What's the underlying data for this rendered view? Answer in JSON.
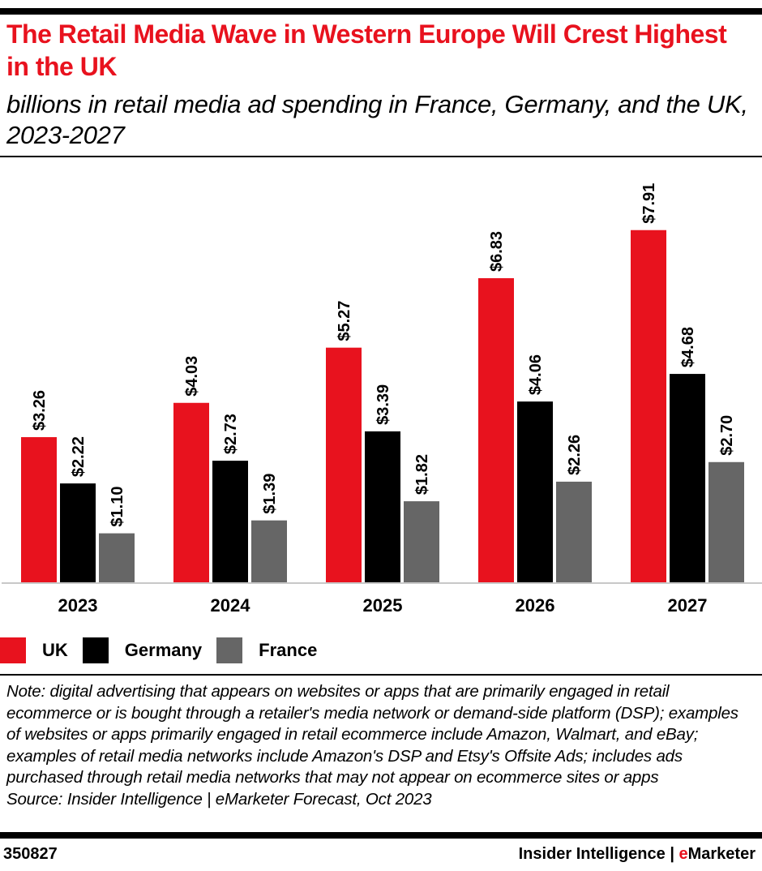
{
  "header": {
    "title": "The Retail Media Wave in Western Europe Will Crest Highest in the UK",
    "subtitle": "billions in retail media ad spending in France, Germany, and the UK, 2023-2027"
  },
  "chart_data": {
    "type": "bar",
    "title": "The Retail Media Wave in Western Europe Will Crest Highest in the UK",
    "subtitle": "billions in retail media ad spending in France, Germany, and the UK, 2023-2027",
    "xlabel": "",
    "ylabel": "",
    "categories": [
      "2023",
      "2024",
      "2025",
      "2026",
      "2027"
    ],
    "series": [
      {
        "name": "UK",
        "color": "#e8121e",
        "values": [
          3.26,
          4.03,
          5.27,
          6.83,
          7.91
        ],
        "labels": [
          "$3.26",
          "$4.03",
          "$5.27",
          "$6.83",
          "$7.91"
        ]
      },
      {
        "name": "Germany",
        "color": "#000000",
        "values": [
          2.22,
          2.73,
          3.39,
          4.06,
          4.68
        ],
        "labels": [
          "$2.22",
          "$2.73",
          "$3.39",
          "$4.06",
          "$4.68"
        ]
      },
      {
        "name": "France",
        "color": "#666666",
        "values": [
          1.1,
          1.39,
          1.82,
          2.26,
          2.7
        ],
        "labels": [
          "$1.10",
          "$1.39",
          "$1.82",
          "$2.26",
          "$2.70"
        ]
      }
    ],
    "ylim": [
      0,
      9.1
    ],
    "grid": false,
    "legend": "bottom-left",
    "data_labels": "rotated-vertical"
  },
  "legend": [
    {
      "label": "UK",
      "color": "#e8121e"
    },
    {
      "label": "Germany",
      "color": "#000000"
    },
    {
      "label": "France",
      "color": "#666666"
    }
  ],
  "note": "Note: digital advertising that appears on websites or apps that are primarily engaged in retail ecommerce or is bought through a retailer's media network or demand-side platform (DSP); examples of websites or apps primarily engaged in retail ecommerce include Amazon, Walmart, and eBay; examples of retail media networks include Amazon's DSP and Etsy's Offsite Ads; includes ads purchased through retail media networks that may not appear on ecommerce sites or apps",
  "source": "Source: Insider Intelligence | eMarketer Forecast, Oct 2023",
  "footer": {
    "chart_id": "350827",
    "brand_prefix": "Insider Intelligence | ",
    "brand_e": "e",
    "brand_rest": "Marketer"
  }
}
